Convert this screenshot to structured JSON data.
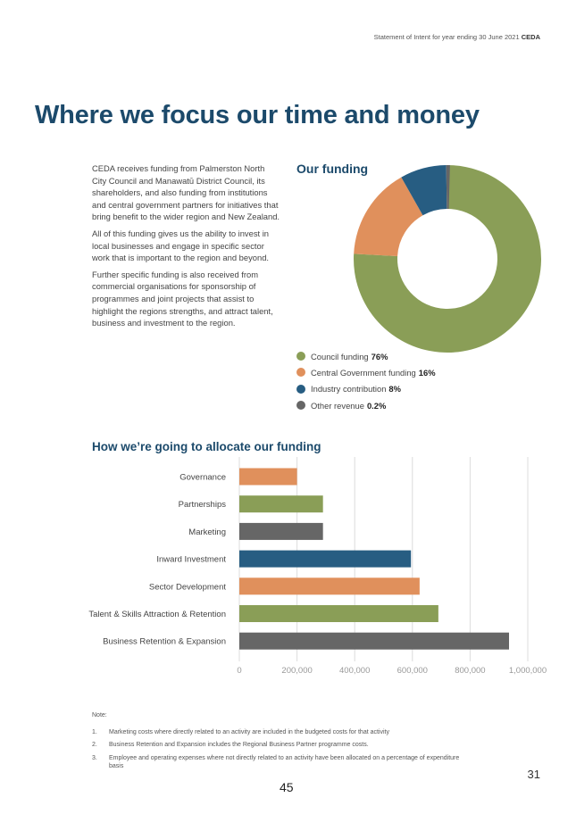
{
  "header": {
    "running_text": "Statement of Intent for year ending 30 June 2021",
    "org": "CEDA"
  },
  "title": "Where we focus our time and money",
  "intro": [
    "CEDA receives funding from Palmerston North City Council and Manawatū District Council, its shareholders, and also funding from institutions and central government partners for initiatives that bring benefit to the wider region and New Zealand.",
    "All of this funding gives us the ability to invest in local businesses and engage in specific sector work that is important to the region and beyond.",
    "Further specific funding is also received from commercial organisations for sponsorship of programmes and joint projects that assist to highlight the regions strengths, and attract talent, business and investment to the region."
  ],
  "funding": {
    "title": "Our funding",
    "legend": [
      {
        "label": "Council funding",
        "value": "76%",
        "color": "#8a9e57"
      },
      {
        "label": "Central Government funding",
        "value": "16%",
        "color": "#e0905c"
      },
      {
        "label": "Industry contribution",
        "value": "8%",
        "color": "#275d82"
      },
      {
        "label": "Other revenue",
        "value": "0.2%",
        "color": "#666666"
      }
    ]
  },
  "allocation": {
    "title": "How we’re going to allocate our funding"
  },
  "chart_data": [
    {
      "type": "pie",
      "title": "Our funding",
      "categories": [
        "Council funding",
        "Central Government funding",
        "Industry contribution",
        "Other revenue"
      ],
      "values": [
        76,
        16,
        8,
        0.2
      ],
      "colors": [
        "#8a9e57",
        "#e0905c",
        "#275d82",
        "#666666"
      ],
      "legend": "bottom"
    },
    {
      "type": "bar",
      "orientation": "horizontal",
      "title": "How we’re going to allocate our funding",
      "categories": [
        "Governance",
        "Partnerships",
        "Marketing",
        "Inward Investment",
        "Sector Development",
        "Talent & Skills Attraction & Retention",
        "Business Retention & Expansion"
      ],
      "values": [
        200000,
        290000,
        290000,
        595000,
        625000,
        690000,
        935000
      ],
      "colors": [
        "#e0905c",
        "#8a9e57",
        "#666666",
        "#275d82",
        "#e0905c",
        "#8a9e57",
        "#666666"
      ],
      "xlim": [
        0,
        1000000
      ],
      "xticks": [
        0,
        200000,
        400000,
        600000,
        800000,
        1000000
      ],
      "xtick_labels": [
        "0",
        "200,000",
        "400,000",
        "600,000",
        "800,000",
        "1,000,000"
      ],
      "grid": true
    }
  ],
  "notes": {
    "heading": "Note:",
    "items": [
      {
        "num": "1.",
        "text": "Marketing costs where directly related to an activity are included in the budgeted costs for that activity"
      },
      {
        "num": "2.",
        "text": "Business Retention and Expansion includes the Regional Business Partner programme costs."
      },
      {
        "num": "3.",
        "text": "Employee and operating expenses where not directly related to an activity have been allocated on a percentage of expenditure basis"
      }
    ]
  },
  "page_numbers": {
    "document_page": "31",
    "pdf_page": "45"
  }
}
